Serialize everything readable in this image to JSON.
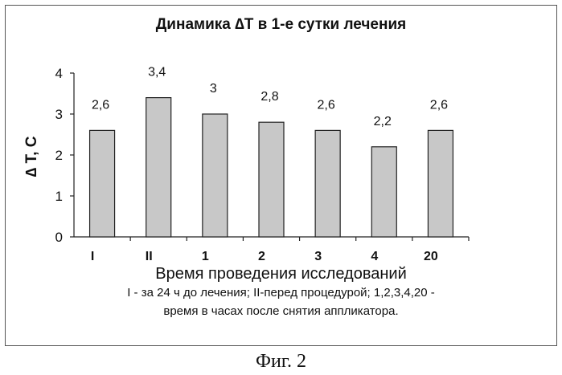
{
  "figure": {
    "caption": "Фиг. 2"
  },
  "chart_data": {
    "type": "bar",
    "title": "Динамика ∆Т в 1-е сутки лечения",
    "categories": [
      "I",
      "II",
      "1",
      "2",
      "3",
      "4",
      "20"
    ],
    "values": [
      2.6,
      3.4,
      3.0,
      2.8,
      2.6,
      2.2,
      2.6
    ],
    "data_labels": [
      "2,6",
      "3,4",
      "3",
      "2,8",
      "2,6",
      "2,2",
      "2,6"
    ],
    "xlabel": "Время проведения исследований",
    "ylabel": "∆ Т, С",
    "ylim": [
      0,
      4
    ],
    "yticks": [
      "0",
      "1",
      "2",
      "3",
      "4"
    ],
    "grid": false,
    "legend": "none",
    "bar_color": "#c8c8c8",
    "notes": [
      "I - за 24 ч до лечения; II-перед процедурой; 1,2,3,4,20 -",
      "время в часах после снятия  аппликатора."
    ]
  }
}
